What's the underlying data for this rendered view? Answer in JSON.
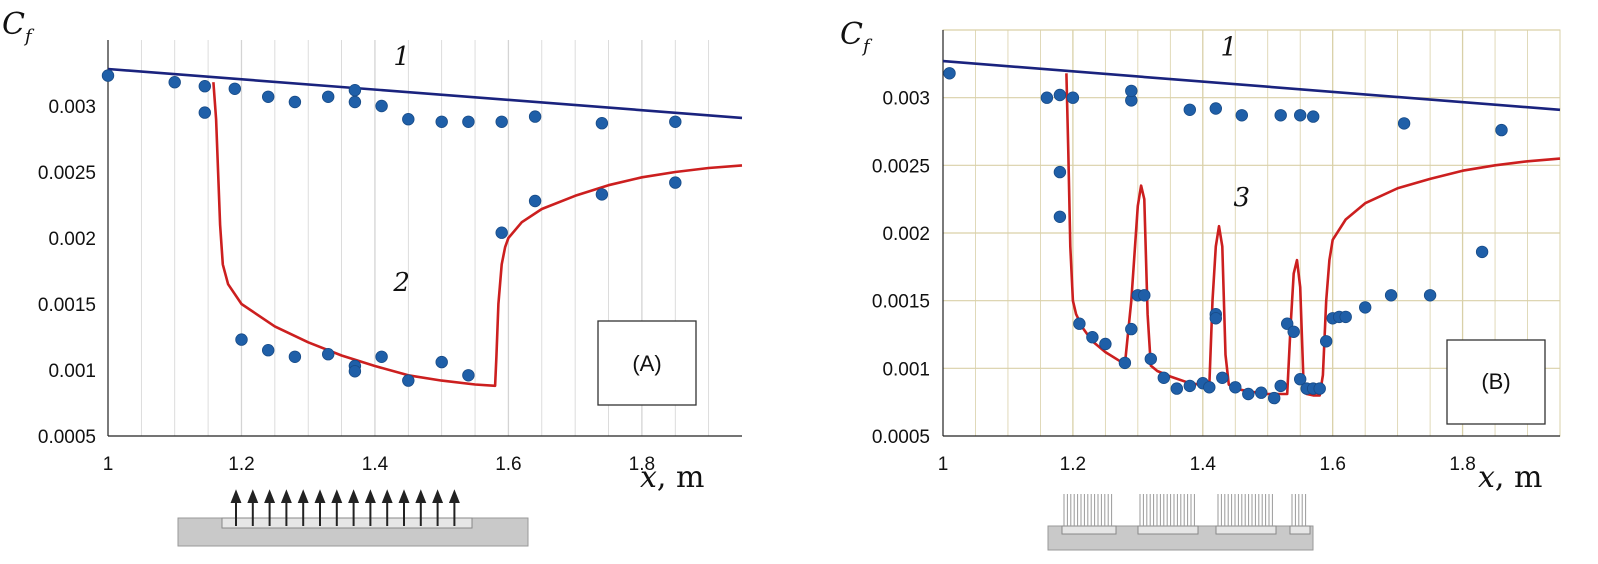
{
  "chart_data": [
    {
      "type": "line",
      "panel_label": "(A)",
      "ylabel_main": "C",
      "ylabel_sub": "f",
      "xlabel_var": "x",
      "xlabel_unit": ", m",
      "xlim": [
        1.0,
        1.95
      ],
      "ylim": [
        0.0005,
        0.0035
      ],
      "x_ticks": [
        "1",
        "1.2",
        "1.4",
        "1.6",
        "1.8"
      ],
      "y_ticks": [
        "0.0005",
        "0.001",
        "0.0015",
        "0.002",
        "0.0025",
        "0.003"
      ],
      "grid": "vertical",
      "grid_color": "#d4d4d4",
      "curve_labels": [
        {
          "text": "1",
          "x": 1.44,
          "y": 0.00331
        },
        {
          "text": "2",
          "x": 1.44,
          "y": 0.0016
        }
      ],
      "series": [
        {
          "name": "1",
          "kind": "line",
          "color": "#1a237e",
          "x": [
            1.0,
            1.95
          ],
          "y": [
            0.00328,
            0.00291
          ]
        },
        {
          "name": "2",
          "kind": "line",
          "color": "#cc1f1f",
          "x": [
            1.158,
            1.162,
            1.165,
            1.168,
            1.172,
            1.18,
            1.2,
            1.25,
            1.3,
            1.35,
            1.4,
            1.45,
            1.5,
            1.55,
            1.58,
            1.582,
            1.585,
            1.59,
            1.595,
            1.6,
            1.62,
            1.65,
            1.7,
            1.75,
            1.8,
            1.85,
            1.9,
            1.95
          ],
          "y": [
            0.00318,
            0.0029,
            0.0025,
            0.0021,
            0.0018,
            0.00165,
            0.0015,
            0.00133,
            0.00121,
            0.00111,
            0.00103,
            0.00096,
            0.00092,
            0.00089,
            0.00088,
            0.0011,
            0.0015,
            0.0018,
            0.00193,
            0.002,
            0.00212,
            0.00222,
            0.00232,
            0.0024,
            0.00246,
            0.0025,
            0.00253,
            0.00255
          ]
        },
        {
          "name": "measured",
          "kind": "scatter",
          "color": "#1f5fa8",
          "x": [
            1.0,
            1.1,
            1.145,
            1.145,
            1.19,
            1.24,
            1.28,
            1.33,
            1.37,
            1.37,
            1.41,
            1.45,
            1.5,
            1.54,
            1.59,
            1.64,
            1.74,
            1.85,
            1.2,
            1.24,
            1.28,
            1.33,
            1.37,
            1.37,
            1.41,
            1.45,
            1.5,
            1.54,
            1.59,
            1.64,
            1.74,
            1.85
          ],
          "y": [
            0.00323,
            0.00318,
            0.00315,
            0.00295,
            0.00313,
            0.00307,
            0.00303,
            0.00307,
            0.00312,
            0.00303,
            0.003,
            0.0029,
            0.00288,
            0.00288,
            0.00288,
            0.00292,
            0.00287,
            0.00288,
            0.00123,
            0.00115,
            0.0011,
            0.00112,
            0.00103,
            0.00099,
            0.0011,
            0.00092,
            0.00106,
            0.00096,
            0.00204,
            0.00228,
            0.00233,
            0.00242
          ]
        }
      ]
    },
    {
      "type": "line",
      "panel_label": "(B)",
      "ylabel_main": "C",
      "ylabel_sub": "f",
      "xlabel_var": "x",
      "xlabel_unit": ", m",
      "xlim": [
        1.0,
        1.95
      ],
      "ylim": [
        0.0005,
        0.0035
      ],
      "x_ticks": [
        "1",
        "1.2",
        "1.4",
        "1.6",
        "1.8"
      ],
      "y_ticks": [
        "0.0005",
        "0.001",
        "0.0015",
        "0.002",
        "0.0025",
        "0.003"
      ],
      "grid": "both",
      "grid_color": "#d9d0a8",
      "curve_labels": [
        {
          "text": "1",
          "x": 1.44,
          "y": 0.00331
        },
        {
          "text": "3",
          "x": 1.46,
          "y": 0.0022
        }
      ],
      "series": [
        {
          "name": "1",
          "kind": "line",
          "color": "#1a237e",
          "x": [
            1.0,
            1.95
          ],
          "y": [
            0.00327,
            0.00291
          ]
        },
        {
          "name": "3",
          "kind": "line",
          "color": "#cc1f1f",
          "x": [
            1.19,
            1.193,
            1.196,
            1.2,
            1.205,
            1.215,
            1.23,
            1.25,
            1.27,
            1.28,
            1.29,
            1.3,
            1.305,
            1.31,
            1.315,
            1.32,
            1.33,
            1.35,
            1.38,
            1.41,
            1.415,
            1.42,
            1.425,
            1.43,
            1.435,
            1.44,
            1.45,
            1.47,
            1.5,
            1.53,
            1.535,
            1.54,
            1.545,
            1.55,
            1.555,
            1.56,
            1.57,
            1.58,
            1.585,
            1.59,
            1.595,
            1.6,
            1.62,
            1.65,
            1.7,
            1.75,
            1.8,
            1.85,
            1.9,
            1.95
          ],
          "y": [
            0.00318,
            0.0026,
            0.0019,
            0.0015,
            0.0014,
            0.0013,
            0.0012,
            0.00112,
            0.00106,
            0.00103,
            0.0015,
            0.0022,
            0.00235,
            0.00225,
            0.0014,
            0.00102,
            0.00098,
            0.00094,
            0.00089,
            0.00087,
            0.0015,
            0.0019,
            0.00205,
            0.0019,
            0.0011,
            0.00088,
            0.00085,
            0.00083,
            0.00081,
            0.00081,
            0.0013,
            0.0017,
            0.0018,
            0.0016,
            0.0009,
            0.00081,
            0.0008,
            0.0008,
            0.00095,
            0.0015,
            0.0018,
            0.00195,
            0.0021,
            0.00222,
            0.00233,
            0.0024,
            0.00246,
            0.0025,
            0.00253,
            0.00255
          ]
        },
        {
          "name": "measured",
          "kind": "scatter",
          "color": "#1f5fa8",
          "x": [
            1.01,
            1.16,
            1.18,
            1.2,
            1.29,
            1.29,
            1.38,
            1.42,
            1.46,
            1.52,
            1.55,
            1.57,
            1.71,
            1.86,
            1.18,
            1.18,
            1.21,
            1.23,
            1.25,
            1.28,
            1.29,
            1.3,
            1.31,
            1.32,
            1.34,
            1.36,
            1.38,
            1.4,
            1.41,
            1.42,
            1.42,
            1.43,
            1.45,
            1.47,
            1.49,
            1.51,
            1.52,
            1.53,
            1.54,
            1.55,
            1.56,
            1.57,
            1.58,
            1.59,
            1.6,
            1.61,
            1.62,
            1.65,
            1.69,
            1.75,
            1.83
          ],
          "y": [
            0.00318,
            0.003,
            0.00302,
            0.003,
            0.00298,
            0.00305,
            0.00291,
            0.00292,
            0.00287,
            0.00287,
            0.00287,
            0.00286,
            0.00281,
            0.00276,
            0.00245,
            0.00212,
            0.00133,
            0.00123,
            0.00118,
            0.00104,
            0.00129,
            0.00154,
            0.00154,
            0.00107,
            0.00093,
            0.00085,
            0.00087,
            0.00089,
            0.00086,
            0.0014,
            0.00137,
            0.00093,
            0.00086,
            0.00081,
            0.00082,
            0.00078,
            0.00087,
            0.00133,
            0.00127,
            0.00092,
            0.00085,
            0.00085,
            0.00085,
            0.0012,
            0.00137,
            0.00138,
            0.00138,
            0.00145,
            0.00154,
            0.00154,
            0.00186
          ]
        }
      ]
    }
  ]
}
